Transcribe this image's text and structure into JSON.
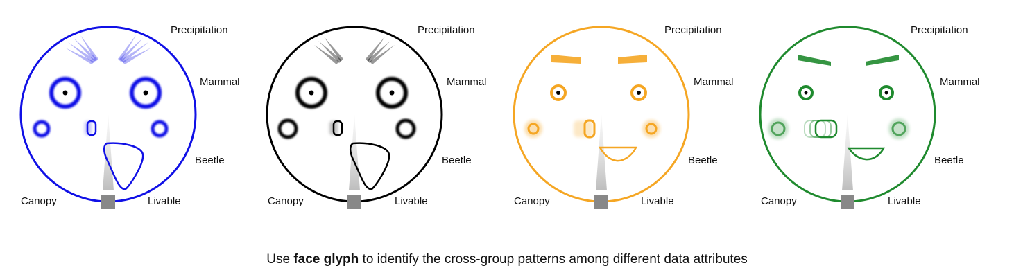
{
  "labels": {
    "precipitation": "Precipitation",
    "mammal": "Mammal",
    "beetle": "Beetle",
    "canopy": "Canopy",
    "livable": "Livable"
  },
  "caption": {
    "pre": "Use ",
    "bold": "face glyph",
    "post": " to identify the cross-group patterns among different data attributes"
  },
  "faces": [
    {
      "color": "#1010e6"
    },
    {
      "color": "#000000"
    },
    {
      "color": "#f5a623"
    },
    {
      "color": "#1f8a2e"
    }
  ]
}
